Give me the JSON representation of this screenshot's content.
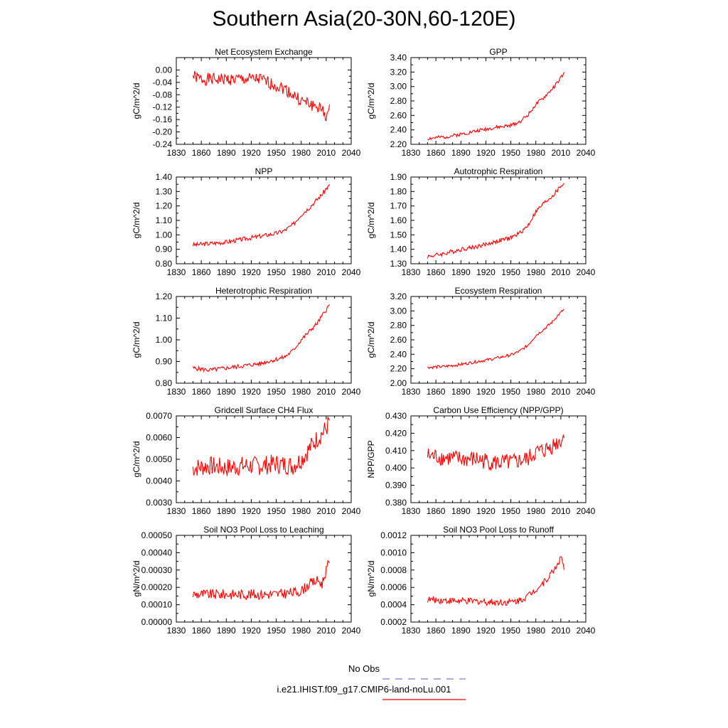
{
  "title": "Southern Asia(20-30N,60-120E)",
  "legend": {
    "obs_label": "No Obs",
    "obs_color": "#7b7bd6",
    "run_label": "i.e21.IHIST.f09_g17.CMIP6-land-noLu.001",
    "run_color": "#ff0000"
  },
  "chart_data": [
    {
      "type": "line",
      "title": "Net Ecosystem Exchange",
      "ylabel": "gC/m^2/d",
      "xlim": [
        1830,
        2040
      ],
      "ylim": [
        -0.24,
        0.04
      ],
      "xticks": [
        1830,
        1860,
        1890,
        1920,
        1950,
        1980,
        2010,
        2040
      ],
      "yticks": [
        -0.24,
        -0.2,
        -0.16,
        -0.12,
        -0.08,
        -0.04,
        0.0
      ],
      "ydec": 2,
      "series": [
        {
          "x": [
            1850,
            1860,
            1870,
            1880,
            1890,
            1900,
            1910,
            1920,
            1930,
            1940,
            1950,
            1960,
            1970,
            1980,
            1990,
            2000,
            2005,
            2010,
            2014
          ],
          "y": [
            -0.02,
            -0.03,
            -0.03,
            -0.03,
            -0.03,
            -0.03,
            -0.03,
            -0.03,
            -0.03,
            -0.04,
            -0.05,
            -0.06,
            -0.08,
            -0.1,
            -0.11,
            -0.12,
            -0.13,
            -0.15,
            -0.13
          ],
          "noise": 0.02,
          "seed": 1
        }
      ]
    },
    {
      "type": "line",
      "title": "GPP",
      "ylabel": "gC/m^2/d",
      "xlim": [
        1830,
        2040
      ],
      "ylim": [
        2.2,
        3.4
      ],
      "xticks": [
        1830,
        1860,
        1890,
        1920,
        1950,
        1980,
        2010,
        2040
      ],
      "yticks": [
        2.2,
        2.4,
        2.6,
        2.8,
        3.0,
        3.2,
        3.4
      ],
      "ydec": 2,
      "series": [
        {
          "x": [
            1850,
            1870,
            1890,
            1910,
            1930,
            1950,
            1960,
            1970,
            1980,
            1990,
            2000,
            2005,
            2010,
            2014
          ],
          "y": [
            2.28,
            2.3,
            2.34,
            2.39,
            2.43,
            2.46,
            2.51,
            2.6,
            2.75,
            2.85,
            2.97,
            3.04,
            3.12,
            3.18
          ],
          "noise": 0.025,
          "seed": 2
        }
      ]
    },
    {
      "type": "line",
      "title": "NPP",
      "ylabel": "gC/m^2/d",
      "xlim": [
        1830,
        2040
      ],
      "ylim": [
        0.8,
        1.4
      ],
      "xticks": [
        1830,
        1860,
        1890,
        1920,
        1950,
        1980,
        2010,
        2040
      ],
      "yticks": [
        0.8,
        0.9,
        1.0,
        1.1,
        1.2,
        1.3,
        1.4
      ],
      "ydec": 2,
      "series": [
        {
          "x": [
            1850,
            1870,
            1890,
            1910,
            1930,
            1950,
            1960,
            1970,
            1980,
            1990,
            2000,
            2005,
            2010,
            2014
          ],
          "y": [
            0.93,
            0.94,
            0.95,
            0.97,
            0.99,
            1.01,
            1.03,
            1.07,
            1.14,
            1.19,
            1.25,
            1.28,
            1.32,
            1.34
          ],
          "noise": 0.015,
          "seed": 3
        }
      ]
    },
    {
      "type": "line",
      "title": "Autotrophic Respiration",
      "ylabel": "gC/m^2/d",
      "xlim": [
        1830,
        2040
      ],
      "ylim": [
        1.3,
        1.9
      ],
      "xticks": [
        1830,
        1860,
        1890,
        1920,
        1950,
        1980,
        2010,
        2040
      ],
      "yticks": [
        1.3,
        1.4,
        1.5,
        1.6,
        1.7,
        1.8,
        1.9
      ],
      "ydec": 2,
      "series": [
        {
          "x": [
            1850,
            1870,
            1890,
            1910,
            1930,
            1950,
            1960,
            1970,
            1980,
            1990,
            2000,
            2005,
            2010,
            2014
          ],
          "y": [
            1.35,
            1.37,
            1.4,
            1.42,
            1.45,
            1.48,
            1.51,
            1.56,
            1.66,
            1.72,
            1.77,
            1.8,
            1.84,
            1.85
          ],
          "noise": 0.015,
          "seed": 4
        }
      ]
    },
    {
      "type": "line",
      "title": "Heterotrophic Respiration",
      "ylabel": "gC/m^2/d",
      "xlim": [
        1830,
        2040
      ],
      "ylim": [
        0.8,
        1.2
      ],
      "xticks": [
        1830,
        1860,
        1890,
        1920,
        1950,
        1980,
        2010,
        2040
      ],
      "yticks": [
        0.8,
        0.9,
        1.0,
        1.1,
        1.2
      ],
      "ydec": 2,
      "series": [
        {
          "x": [
            1850,
            1870,
            1890,
            1910,
            1930,
            1950,
            1960,
            1970,
            1980,
            1990,
            2000,
            2005,
            2010,
            2014
          ],
          "y": [
            0.87,
            0.86,
            0.87,
            0.88,
            0.89,
            0.91,
            0.92,
            0.95,
            1.0,
            1.04,
            1.08,
            1.11,
            1.14,
            1.16
          ],
          "noise": 0.01,
          "seed": 5
        }
      ]
    },
    {
      "type": "line",
      "title": "Ecosystem Respiration",
      "ylabel": "gC/m^2/d",
      "xlim": [
        1830,
        2040
      ],
      "ylim": [
        2.0,
        3.2
      ],
      "xticks": [
        1830,
        1860,
        1890,
        1920,
        1950,
        1980,
        2010,
        2040
      ],
      "yticks": [
        2.0,
        2.2,
        2.4,
        2.6,
        2.8,
        3.0,
        3.2
      ],
      "ydec": 2,
      "series": [
        {
          "x": [
            1850,
            1870,
            1890,
            1910,
            1930,
            1950,
            1960,
            1970,
            1980,
            1990,
            2000,
            2005,
            2010,
            2014
          ],
          "y": [
            2.22,
            2.23,
            2.26,
            2.3,
            2.34,
            2.39,
            2.44,
            2.52,
            2.66,
            2.75,
            2.85,
            2.92,
            2.98,
            3.02
          ],
          "noise": 0.02,
          "seed": 6
        }
      ]
    },
    {
      "type": "line",
      "title": "Gridcell Surface CH4 Flux",
      "ylabel": "gC/m^2/d",
      "xlim": [
        1830,
        2040
      ],
      "ylim": [
        0.003,
        0.007
      ],
      "xticks": [
        1830,
        1860,
        1890,
        1920,
        1950,
        1980,
        2010,
        2040
      ],
      "yticks": [
        0.003,
        0.004,
        0.005,
        0.006,
        0.007
      ],
      "ydec": 4,
      "series": [
        {
          "x": [
            1850,
            1870,
            1890,
            1910,
            1930,
            1950,
            1970,
            1980,
            1990,
            2000,
            2005,
            2010,
            2014
          ],
          "y": [
            0.0046,
            0.0047,
            0.0046,
            0.0047,
            0.0047,
            0.0048,
            0.0047,
            0.005,
            0.0055,
            0.006,
            0.0062,
            0.0064,
            0.0068
          ],
          "noise": 0.00045,
          "seed": 7
        }
      ]
    },
    {
      "type": "line",
      "title": "Carbon Use Efficiency (NPP/GPP)",
      "ylabel": "NPP/GPP",
      "xlim": [
        1830,
        2040
      ],
      "ylim": [
        0.38,
        0.43
      ],
      "xticks": [
        1830,
        1860,
        1890,
        1920,
        1950,
        1980,
        2010,
        2040
      ],
      "yticks": [
        0.38,
        0.39,
        0.4,
        0.41,
        0.42,
        0.43
      ],
      "ydec": 3,
      "series": [
        {
          "x": [
            1850,
            1870,
            1890,
            1910,
            1930,
            1950,
            1970,
            1980,
            1990,
            2000,
            2010,
            2014
          ],
          "y": [
            0.407,
            0.406,
            0.405,
            0.405,
            0.403,
            0.403,
            0.405,
            0.409,
            0.41,
            0.413,
            0.416,
            0.418
          ],
          "noise": 0.005,
          "seed": 8
        }
      ]
    },
    {
      "type": "line",
      "title": "Soil NO3 Pool Loss to Leaching",
      "ylabel": "gN/m^2/d",
      "xlim": [
        1830,
        2040
      ],
      "ylim": [
        0.0,
        0.0005
      ],
      "xticks": [
        1830,
        1860,
        1890,
        1920,
        1950,
        1980,
        2010,
        2040
      ],
      "yticks": [
        0.0,
        0.0001,
        0.0002,
        0.0003,
        0.0004,
        0.0005
      ],
      "ydec": 5,
      "series": [
        {
          "x": [
            1850,
            1870,
            1890,
            1910,
            1930,
            1950,
            1970,
            1980,
            1990,
            2000,
            2005,
            2010,
            2014
          ],
          "y": [
            0.00016,
            0.00016,
            0.00016,
            0.00016,
            0.00016,
            0.00016,
            0.00017,
            0.00018,
            0.00022,
            0.00024,
            0.00022,
            0.0003,
            0.00035
          ],
          "noise": 3e-05,
          "seed": 9
        }
      ]
    },
    {
      "type": "line",
      "title": "Soil NO3 Pool Loss to Runoff",
      "ylabel": "gN/m^2/d",
      "xlim": [
        1830,
        2040
      ],
      "ylim": [
        0.0002,
        0.0012
      ],
      "xticks": [
        1830,
        1860,
        1890,
        1920,
        1950,
        1980,
        2010,
        2040
      ],
      "yticks": [
        0.0002,
        0.0004,
        0.0006,
        0.0008,
        0.001,
        0.0012
      ],
      "ydec": 4,
      "series": [
        {
          "x": [
            1850,
            1870,
            1890,
            1910,
            1930,
            1950,
            1960,
            1970,
            1980,
            1990,
            2000,
            2005,
            2010,
            2014
          ],
          "y": [
            0.00046,
            0.00045,
            0.00044,
            0.00044,
            0.00043,
            0.00043,
            0.00045,
            0.0005,
            0.00058,
            0.00066,
            0.00078,
            0.00085,
            0.00095,
            0.00082
          ],
          "noise": 4e-05,
          "seed": 10
        }
      ]
    }
  ]
}
